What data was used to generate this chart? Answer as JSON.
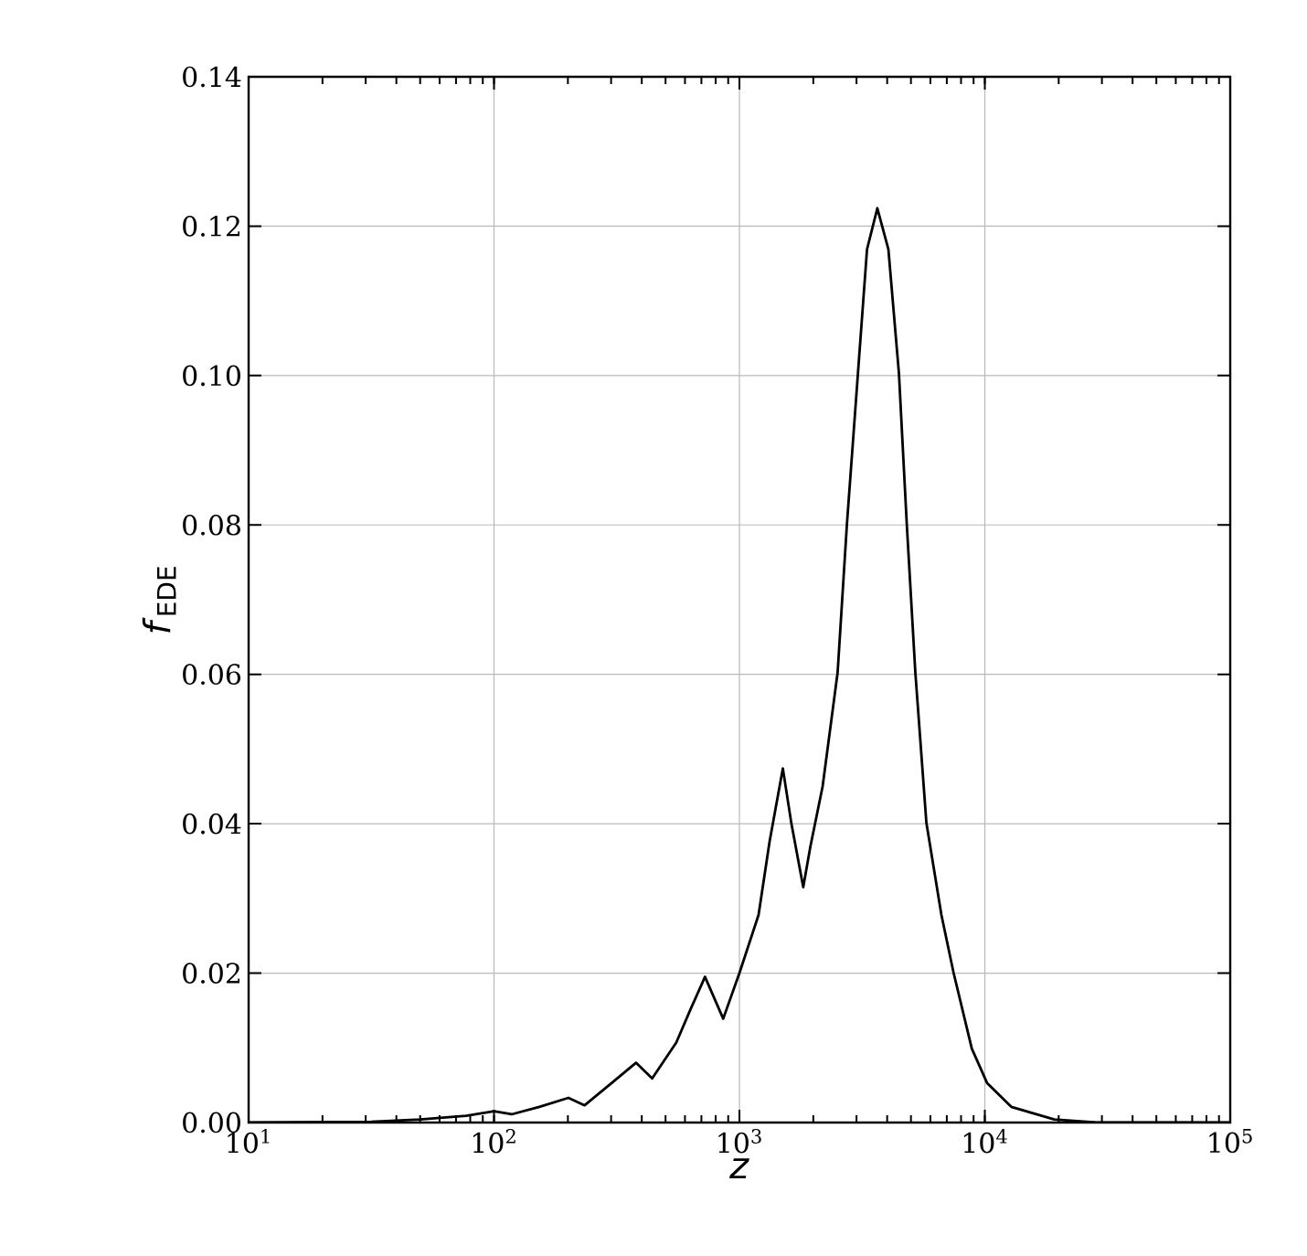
{
  "chart_data": {
    "type": "line",
    "xlabel": "*z*",
    "ylabel": "*f*$_{EDE}$",
    "log": "x",
    "grid": true,
    "marker": "none",
    "line_style": "solid",
    "xlim": [
      10,
      100000
    ],
    "ylim": [
      0,
      0.14
    ],
    "xticks": [
      {
        "value": 10,
        "label": "10$^{1}$"
      },
      {
        "value": 100,
        "label": "10$^{2}$"
      },
      {
        "value": 1000,
        "label": "10$^{3}$"
      },
      {
        "value": 10000,
        "label": "10$^{4}$"
      },
      {
        "value": 100000,
        "label": "10$^{5}$"
      }
    ],
    "yticks": [
      {
        "value": 0,
        "label": "0.00"
      },
      {
        "value": 0.02,
        "label": "0.02"
      },
      {
        "value": 0.04,
        "label": "0.04"
      },
      {
        "value": 0.06,
        "label": "0.06"
      },
      {
        "value": 0.08,
        "label": "0.08"
      },
      {
        "value": 0.1,
        "label": "0.10"
      },
      {
        "value": 0.12,
        "label": "0.12"
      },
      {
        "value": 0.14,
        "label": "0.14"
      }
    ],
    "series": [
      {
        "color": "#000000",
        "x": [
          10,
          31.6,
          50,
          77,
          100,
          118,
          153,
          201,
          234,
          302,
          379,
          441,
          553,
          631,
          724,
          859,
          1000,
          1197,
          1327,
          1503,
          1629,
          1820,
          1945,
          2183,
          2512,
          2742,
          3041,
          3311,
          3648,
          4046,
          4467,
          4808,
          5212,
          5781,
          6653,
          7464,
          8851,
          10210,
          12820,
          19190,
          28580,
          100000
        ],
        "values": [
          0,
          0.0001,
          0.0004,
          0.0009,
          0.0015,
          0.0011,
          0.0021,
          0.0033,
          0.0023,
          0.0053,
          0.008,
          0.0059,
          0.0107,
          0.0151,
          0.0195,
          0.0139,
          0.02,
          0.0278,
          0.0376,
          0.0474,
          0.04,
          0.0315,
          0.0369,
          0.045,
          0.0602,
          0.0801,
          0.1003,
          0.1169,
          0.1224,
          0.1169,
          0.1003,
          0.0801,
          0.0602,
          0.0401,
          0.0278,
          0.02,
          0.0099,
          0.0053,
          0.0021,
          0.0004,
          0,
          0
        ]
      }
    ]
  }
}
